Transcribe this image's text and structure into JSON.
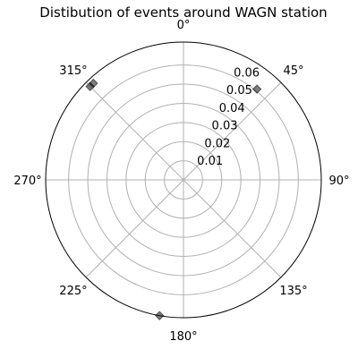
{
  "chart_data": {
    "type": "scatter",
    "projection": "polar",
    "title": "Distibution of events around WAGN station",
    "theta_zero_location": "N",
    "theta_direction": "clockwise",
    "theta_ticks_deg": [
      0,
      45,
      90,
      135,
      180,
      225,
      270,
      315
    ],
    "theta_tick_labels": [
      "0°",
      "45°",
      "90°",
      "135°",
      "180°",
      "225°",
      "270°",
      "315°"
    ],
    "r_ticks": [
      0.01,
      0.02,
      0.03,
      0.04,
      0.05,
      0.06
    ],
    "r_tick_labels": [
      "0.01",
      "0.02",
      "0.03",
      "0.04",
      "0.05",
      "0.06"
    ],
    "rlim": [
      0,
      0.072
    ],
    "rlabel_position_deg": 22.5,
    "marker": "diamond",
    "marker_color": "#000000",
    "marker_alpha": 0.5,
    "points": [
      {
        "theta_deg": 39,
        "r": 0.061
      },
      {
        "theta_deg": 315,
        "r": 0.069
      },
      {
        "theta_deg": 317,
        "r": 0.069
      },
      {
        "theta_deg": 190,
        "r": 0.072
      }
    ]
  }
}
